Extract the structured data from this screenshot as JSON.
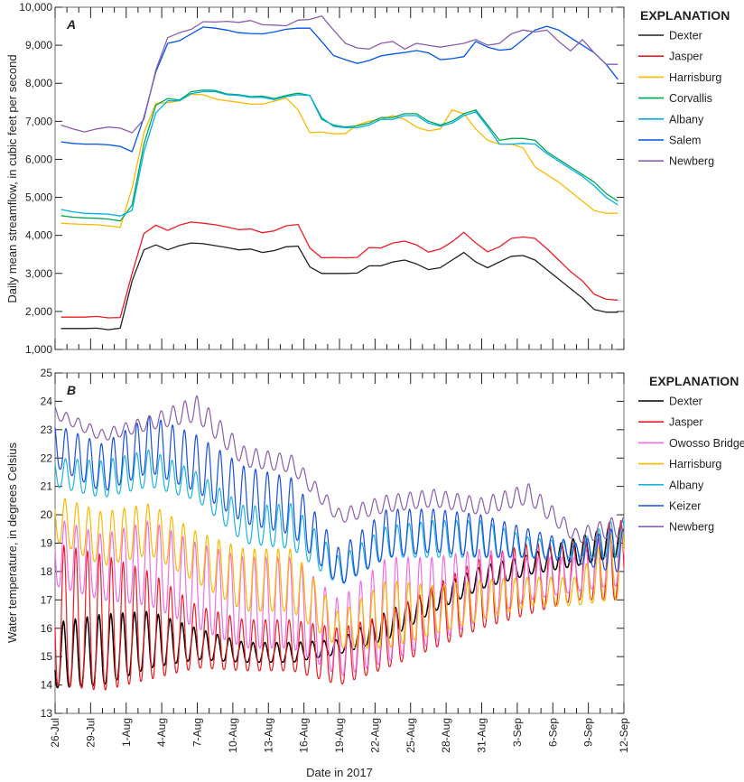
{
  "chart_data": [
    {
      "type": "line",
      "panel_label": "A",
      "ylabel": "Daily mean streamflow, in cubic feet per second",
      "ylim": [
        1000,
        10000
      ],
      "yticks": [
        "1,000",
        "2,000",
        "3,000",
        "4,000",
        "5,000",
        "6,000",
        "7,000",
        "8,000",
        "9,000",
        "10,000"
      ],
      "x_start": "26-Jul-2017",
      "x_days": 48,
      "legend_title": "EXPLANATION",
      "legend_placement": "right",
      "series": [
        {
          "name": "Dexter",
          "color": "#231f20",
          "values": [
            1550,
            1550,
            1550,
            1560,
            1520,
            1560,
            2800,
            3620,
            3750,
            3620,
            3730,
            3800,
            3780,
            3730,
            3680,
            3620,
            3640,
            3550,
            3600,
            3700,
            3720,
            3170,
            3000,
            3000,
            3000,
            3010,
            3200,
            3200,
            3300,
            3350,
            3250,
            3100,
            3150,
            3350,
            3550,
            3300,
            3150,
            3300,
            3450,
            3470,
            3350,
            3100,
            2850,
            2600,
            2350,
            2050,
            1980,
            1980
          ]
        },
        {
          "name": "Jasper",
          "color": "#ed1c24",
          "values": [
            1850,
            1850,
            1850,
            1870,
            1830,
            1840,
            3000,
            4050,
            4270,
            4130,
            4270,
            4350,
            4320,
            4280,
            4220,
            4150,
            4170,
            4070,
            4120,
            4250,
            4290,
            3670,
            3410,
            3420,
            3410,
            3420,
            3680,
            3670,
            3800,
            3850,
            3750,
            3560,
            3640,
            3830,
            4080,
            3800,
            3570,
            3700,
            3920,
            3960,
            3920,
            3650,
            3350,
            3050,
            2800,
            2450,
            2320,
            2300
          ]
        },
        {
          "name": "Harrisburg",
          "color": "#fbb900",
          "values": [
            4320,
            4300,
            4290,
            4280,
            4250,
            4210,
            5250,
            6700,
            7470,
            7490,
            7540,
            7710,
            7700,
            7590,
            7540,
            7500,
            7450,
            7450,
            7530,
            7610,
            7300,
            6700,
            6720,
            6670,
            6680,
            6900,
            7000,
            7050,
            7150,
            7050,
            6850,
            6750,
            6800,
            7300,
            7200,
            6800,
            6500,
            6400,
            6400,
            6300,
            5800,
            5600,
            5400,
            5150,
            4900,
            4650,
            4580,
            4580
          ]
        },
        {
          "name": "Corvallis",
          "color": "#00a651",
          "values": [
            4520,
            4480,
            4460,
            4450,
            4430,
            4380,
            4800,
            6400,
            7420,
            7600,
            7560,
            7780,
            7820,
            7810,
            7720,
            7700,
            7650,
            7660,
            7600,
            7680,
            7740,
            7680,
            7050,
            6900,
            6850,
            6880,
            6950,
            7100,
            7100,
            7200,
            7200,
            7000,
            6900,
            7000,
            7200,
            7300,
            6900,
            6500,
            6550,
            6550,
            6500,
            6200,
            6000,
            5800,
            5600,
            5400,
            5100,
            4900
          ]
        },
        {
          "name": "Albany",
          "color": "#00aeef",
          "values": [
            4680,
            4620,
            4580,
            4570,
            4560,
            4510,
            4660,
            6200,
            7220,
            7540,
            7540,
            7730,
            7780,
            7780,
            7700,
            7680,
            7630,
            7630,
            7570,
            7650,
            7700,
            7680,
            7100,
            6870,
            6830,
            6830,
            6900,
            7050,
            7050,
            7150,
            7150,
            6950,
            6870,
            6950,
            7150,
            7250,
            6850,
            6400,
            6400,
            6420,
            6400,
            6150,
            5950,
            5750,
            5550,
            5300,
            5000,
            4800
          ]
        },
        {
          "name": "Salem",
          "color": "#0054e8",
          "values": [
            6460,
            6420,
            6400,
            6400,
            6380,
            6340,
            6200,
            7100,
            8300,
            9050,
            9120,
            9300,
            9480,
            9450,
            9400,
            9330,
            9310,
            9300,
            9350,
            9420,
            9450,
            9450,
            9100,
            8730,
            8620,
            8520,
            8600,
            8720,
            8770,
            8810,
            8860,
            8800,
            8620,
            8650,
            8700,
            9100,
            8950,
            8870,
            8900,
            9150,
            9400,
            9500,
            9400,
            9200,
            9000,
            8800,
            8500,
            8100
          ]
        },
        {
          "name": "Newberg",
          "color": "#8a5db0",
          "values": [
            6900,
            6800,
            6720,
            6800,
            6850,
            6820,
            6700,
            7050,
            8350,
            9200,
            9330,
            9420,
            9620,
            9610,
            9630,
            9600,
            9650,
            9540,
            9530,
            9510,
            9660,
            9680,
            9770,
            9400,
            9050,
            8930,
            8900,
            9050,
            9100,
            8900,
            9050,
            9000,
            8950,
            9000,
            9050,
            9150,
            9000,
            9050,
            9300,
            9400,
            9350,
            9400,
            9100,
            8850,
            9150,
            8800,
            8500,
            8500
          ]
        }
      ]
    },
    {
      "type": "line",
      "panel_label": "B",
      "ylabel": "Water temperature, in degrees Celsius",
      "ylim": [
        13,
        25
      ],
      "yticks": [
        "13",
        "14",
        "15",
        "16",
        "17",
        "18",
        "19",
        "20",
        "21",
        "22",
        "23",
        "24",
        "25"
      ],
      "x_start": "26-Jul-2017",
      "x_days": 48,
      "legend_title": "EXPLANATION",
      "legend_placement": "right",
      "keyframe_days": [
        0,
        4,
        8,
        12,
        16,
        20,
        24,
        28,
        32,
        36,
        40,
        44,
        47
      ],
      "series": [
        {
          "name": "Dexter",
          "color": "#000000",
          "daily_min": [
            13.9,
            14.0,
            14.6,
            14.9,
            14.8,
            14.8,
            15.1,
            15.6,
            16.6,
            17.4,
            17.9,
            18.2,
            18.5
          ],
          "daily_max": [
            16.2,
            16.5,
            16.6,
            16.0,
            15.5,
            15.5,
            15.6,
            16.6,
            17.4,
            18.2,
            18.6,
            19.2,
            19.6
          ]
        },
        {
          "name": "Jasper",
          "color": "#ed1c24",
          "daily_min": [
            14.0,
            13.8,
            14.2,
            14.6,
            14.5,
            14.5,
            14.0,
            14.6,
            15.3,
            16.0,
            16.5,
            17.0,
            17.0
          ],
          "daily_max": [
            19.0,
            18.6,
            18.0,
            16.8,
            16.3,
            16.3,
            16.0,
            16.5,
            17.5,
            18.5,
            19.0,
            19.0,
            19.8
          ]
        },
        {
          "name": "Owosso Bridge",
          "color": "#ee6ee8",
          "daily_min": [
            17.5,
            17.0,
            16.8,
            16.0,
            15.3,
            15.3,
            14.3,
            14.8,
            15.5,
            16.3,
            17.0,
            17.3,
            17.5
          ],
          "daily_max": [
            19.9,
            19.3,
            19.8,
            19.0,
            18.5,
            18.5,
            17.0,
            18.5,
            18.5,
            18.8,
            18.5,
            18.5,
            19.5
          ]
        },
        {
          "name": "Harrisburg",
          "color": "#fbb900",
          "daily_min": [
            19.1,
            18.2,
            18.6,
            17.6,
            16.6,
            16.6,
            15.3,
            15.3,
            15.8,
            16.3,
            16.8,
            16.8,
            17.0
          ],
          "daily_max": [
            20.7,
            20.1,
            20.4,
            19.4,
            18.8,
            18.8,
            16.5,
            17.7,
            17.5,
            17.7,
            17.8,
            17.8,
            19.5
          ]
        },
        {
          "name": "Albany",
          "color": "#1cb5e0",
          "daily_min": [
            21.0,
            20.6,
            21.0,
            20.5,
            19.0,
            18.8,
            17.5,
            18.5,
            18.5,
            18.5,
            18.5,
            18.5,
            18.5
          ],
          "daily_max": [
            22.0,
            21.9,
            22.3,
            21.5,
            20.3,
            20.4,
            18.5,
            19.6,
            19.8,
            19.8,
            19.2,
            19.0,
            19.8
          ]
        },
        {
          "name": "Keizer",
          "color": "#1a4fe0",
          "daily_min": [
            21.7,
            20.8,
            21.5,
            20.8,
            19.7,
            19.3,
            17.5,
            18.5,
            18.7,
            18.5,
            18.5,
            18.3,
            18.0
          ],
          "daily_max": [
            23.2,
            22.5,
            23.5,
            22.8,
            21.7,
            21.3,
            18.8,
            20.2,
            20.2,
            20.0,
            19.5,
            19.0,
            19.5
          ]
        },
        {
          "name": "Newberg",
          "color": "#8a5db0",
          "daily_min": [
            23.4,
            22.6,
            23.0,
            23.3,
            21.7,
            21.5,
            19.7,
            20.1,
            20.3,
            20.0,
            20.4,
            19.0,
            19.2
          ],
          "daily_max": [
            23.8,
            23.0,
            23.5,
            24.2,
            22.4,
            22.1,
            20.2,
            20.7,
            20.9,
            20.6,
            21.1,
            19.5,
            19.9
          ]
        }
      ]
    }
  ],
  "xaxis": {
    "xlabel": "Date in 2017",
    "tick_labels": [
      "26-Jul",
      "29-Jul",
      "1-Aug",
      "4-Aug",
      "7-Aug",
      "10-Aug",
      "13-Aug",
      "16-Aug",
      "19-Aug",
      "22-Aug",
      "25-Aug",
      "28-Aug",
      "31-Aug",
      "3-Sep",
      "6-Sep",
      "9-Sep",
      "12-Sep"
    ]
  }
}
